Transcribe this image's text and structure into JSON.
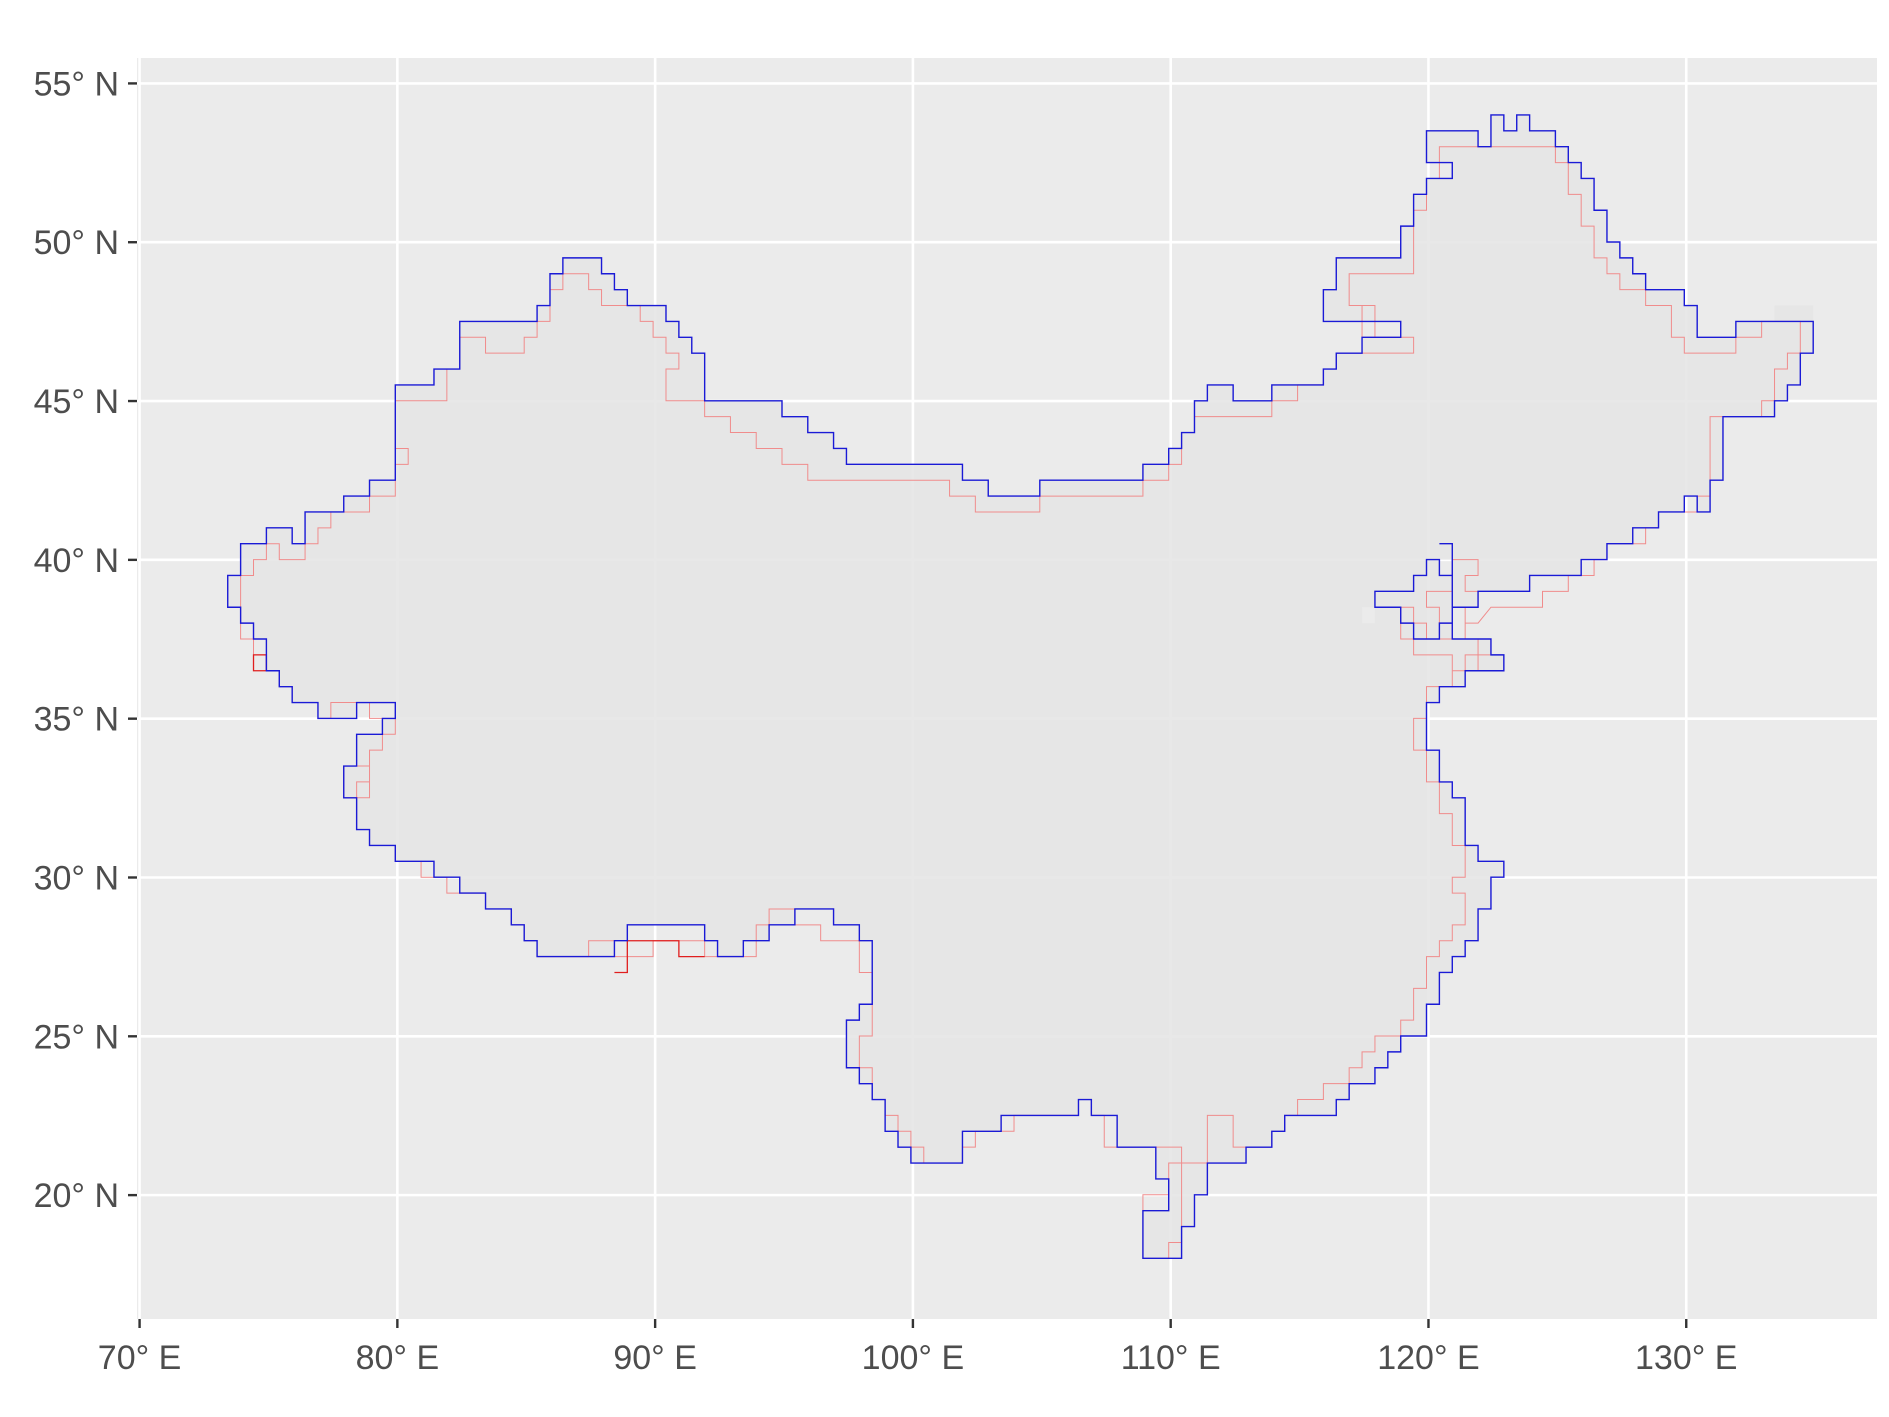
{
  "map": {
    "type": "rasterized-country-outline",
    "colors": {
      "panel_background": "#ebebeb",
      "grid": "#ffffff",
      "fill": "#e6e6e6",
      "outline_primary": "#1a1ad6",
      "outline_secondary": "#f08c8c",
      "outline_secondary_dark": "#e01e1e",
      "axis_text": "#4d4d4d",
      "tick": "#333333"
    },
    "x_axis": {
      "range": [
        69.9,
        137.4
      ],
      "ticks": [
        70,
        80,
        90,
        100,
        110,
        120,
        130
      ],
      "tick_labels": [
        "70° E",
        "80° E",
        "90° E",
        "100° E",
        "110° E",
        "120° E",
        "130° E"
      ]
    },
    "y_axis": {
      "range": [
        16.1,
        55.8
      ],
      "ticks": [
        20,
        25,
        30,
        35,
        40,
        45,
        50,
        55
      ],
      "tick_labels": [
        "20° N",
        "25° N",
        "30° N",
        "35° N",
        "40° N",
        "45° N",
        "50° N",
        "55° N"
      ]
    },
    "grid": true,
    "legend": "none"
  }
}
